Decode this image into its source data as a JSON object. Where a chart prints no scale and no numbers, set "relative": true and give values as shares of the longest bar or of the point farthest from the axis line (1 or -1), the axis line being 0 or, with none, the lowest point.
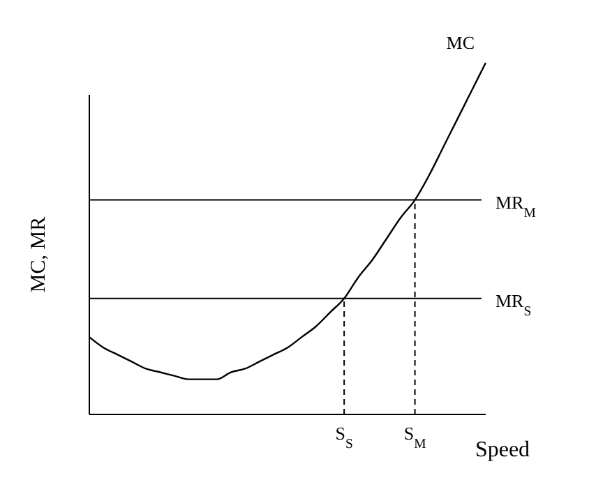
{
  "chart_data": {
    "type": "line",
    "relative": true,
    "xlabel": "Speed",
    "ylabel": "MC, MR",
    "categories": [
      null,
      null,
      null,
      null,
      null,
      null,
      null,
      null,
      null,
      null,
      null,
      null,
      null,
      null,
      null,
      null,
      null,
      null,
      "S$_{S}$",
      null,
      null,
      null,
      null,
      "S$_{M}$",
      null,
      null,
      null,
      null,
      null
    ],
    "series": [
      {
        "name": "MC",
        "color": "#000000",
        "values": [
          0.22,
          0.19,
          0.17,
          0.15,
          0.13,
          0.12,
          0.11,
          0.1,
          0.1,
          0.1,
          0.12,
          0.13,
          0.15,
          0.17,
          0.19,
          0.22,
          0.25,
          0.29,
          0.33,
          0.39,
          0.44,
          0.5,
          0.56,
          0.61,
          0.68,
          0.76,
          0.84,
          0.92,
          1
        ]
      }
    ],
    "ref_lines": [
      {
        "axis": "y",
        "value": 0.61,
        "label": "MR$_{M}$",
        "line_style": "solid"
      },
      {
        "axis": "y",
        "value": 0.33,
        "label": "MR$_{S}$",
        "line_style": "solid"
      },
      {
        "axis": "x",
        "value": "S$_{S}$",
        "line_style": "dashed"
      },
      {
        "axis": "x",
        "value": "S$_{M}$",
        "line_style": "dashed"
      }
    ]
  }
}
